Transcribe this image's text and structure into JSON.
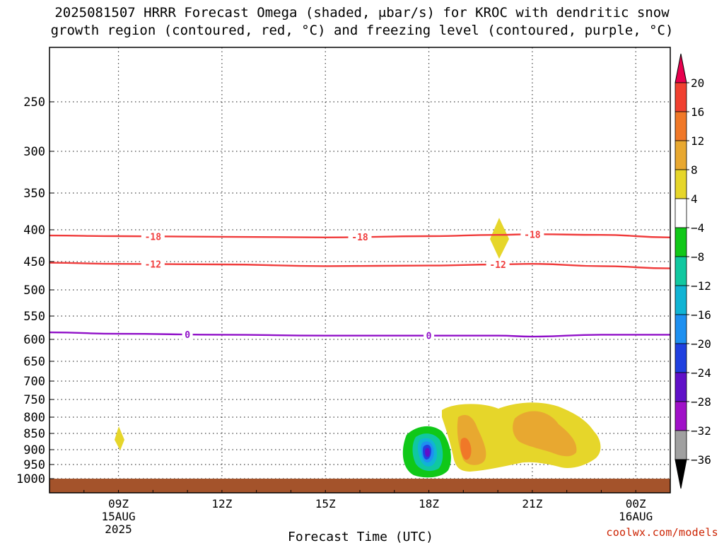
{
  "title_line1": "2025081507 HRRR Forecast Omega (shaded, μbar/s) for KROC with dendritic snow",
  "title_line2": "growth region (contoured, red, °C) and freezing level (contoured, purple, °C)",
  "xlabel": "Forecast Time (UTC)",
  "credit": "coolwx.com/models",
  "chart_data": {
    "type": "heatmap",
    "x_axis": {
      "ticks": [
        {
          "label": "09Z",
          "sub1": "15AUG",
          "sub2": "2025",
          "value": 9
        },
        {
          "label": "12Z",
          "sub1": "",
          "sub2": "",
          "value": 12
        },
        {
          "label": "15Z",
          "sub1": "",
          "sub2": "",
          "value": 15
        },
        {
          "label": "18Z",
          "sub1": "",
          "sub2": "",
          "value": 18
        },
        {
          "label": "21Z",
          "sub1": "",
          "sub2": "",
          "value": 21
        },
        {
          "label": "00Z",
          "sub1": "16AUG",
          "sub2": "",
          "value": 24
        }
      ],
      "range": [
        7,
        25
      ]
    },
    "y_axis": {
      "scale": "pressure (hPa), top at 200",
      "ticks": [
        250,
        300,
        350,
        400,
        450,
        500,
        550,
        600,
        650,
        700,
        750,
        800,
        850,
        900,
        950,
        1000
      ]
    },
    "colorbar": {
      "labels": [
        "20",
        "16",
        "12",
        "8",
        "4",
        "−4",
        "−8",
        "−12",
        "−16",
        "−20",
        "−24",
        "−28",
        "−32",
        "−36"
      ],
      "colors": [
        "#e8004e",
        "#f04030",
        "#f07828",
        "#e8a830",
        "#e6d62a",
        "#ffffff",
        "#10c818",
        "#10c8a0",
        "#10b4d4",
        "#1e90f0",
        "#2040e0",
        "#6010c8",
        "#a010c8",
        "#a0a0a0",
        "#000000"
      ]
    },
    "contours": [
      {
        "label": "-18",
        "color": "#f03c3c",
        "points": [
          [
            7,
            409
          ],
          [
            9,
            410
          ],
          [
            12,
            411
          ],
          [
            15,
            412
          ],
          [
            18,
            410
          ],
          [
            20,
            408
          ],
          [
            21,
            407
          ],
          [
            23,
            408
          ],
          [
            25,
            412
          ]
        ],
        "label_x": [
          10,
          16,
          21
        ]
      },
      {
        "label": "-12",
        "color": "#f03c3c",
        "points": [
          [
            7,
            452
          ],
          [
            9,
            454
          ],
          [
            12,
            455
          ],
          [
            15,
            458
          ],
          [
            18,
            457
          ],
          [
            20,
            455
          ],
          [
            21,
            454
          ],
          [
            23,
            458
          ],
          [
            25,
            462
          ]
        ],
        "label_x": [
          10,
          20
        ]
      },
      {
        "label": "0",
        "color": "#9010c8",
        "points": [
          [
            7,
            585
          ],
          [
            9,
            588
          ],
          [
            12,
            590
          ],
          [
            15,
            592
          ],
          [
            18,
            592
          ],
          [
            20,
            592
          ],
          [
            21,
            594
          ],
          [
            23,
            590
          ],
          [
            25,
            590
          ]
        ],
        "label_x": [
          11,
          18
        ]
      }
    ],
    "omega_features": [
      {
        "value_class": "4 to 8",
        "near_time": 9.0,
        "near_pressure": 875
      },
      {
        "value_class": "4 to 8",
        "near_time": 20.0,
        "near_pressure": 410
      },
      {
        "value_class": "4 to 16",
        "near_time": 20.5,
        "near_pressure": 870
      },
      {
        "value_class": "-4 to -28",
        "near_time": 18.0,
        "near_pressure": 920
      }
    ]
  }
}
